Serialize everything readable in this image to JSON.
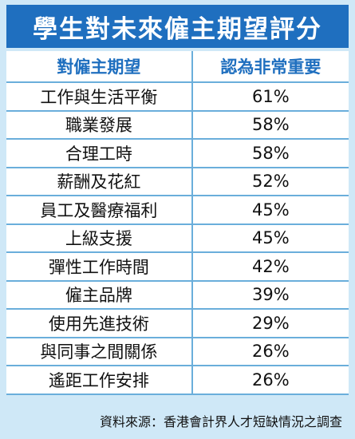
{
  "title": "學生對未來僱主期望評分",
  "table": {
    "headers": [
      "對僱主期望",
      "認為非常重要"
    ],
    "rows": [
      {
        "item": "工作與生活平衡",
        "pct": "61%"
      },
      {
        "item": "職業發展",
        "pct": "58%"
      },
      {
        "item": "合理工時",
        "pct": "58%"
      },
      {
        "item": "薪酬及花紅",
        "pct": "52%"
      },
      {
        "item": "員工及醫療福利",
        "pct": "45%"
      },
      {
        "item": "上級支援",
        "pct": "45%"
      },
      {
        "item": "彈性工作時間",
        "pct": "42%"
      },
      {
        "item": "僱主品牌",
        "pct": "39%"
      },
      {
        "item": "使用先進技術",
        "pct": "29%"
      },
      {
        "item": "與同事之間關係",
        "pct": "26%"
      },
      {
        "item": "遙距工作安排",
        "pct": "26%"
      }
    ]
  },
  "source": "資料來源：香港會計界人才短缺情況之調查",
  "colors": {
    "accent": "#1f6fbf",
    "background": "#cfe8f7",
    "grid": "#6aaedb"
  }
}
